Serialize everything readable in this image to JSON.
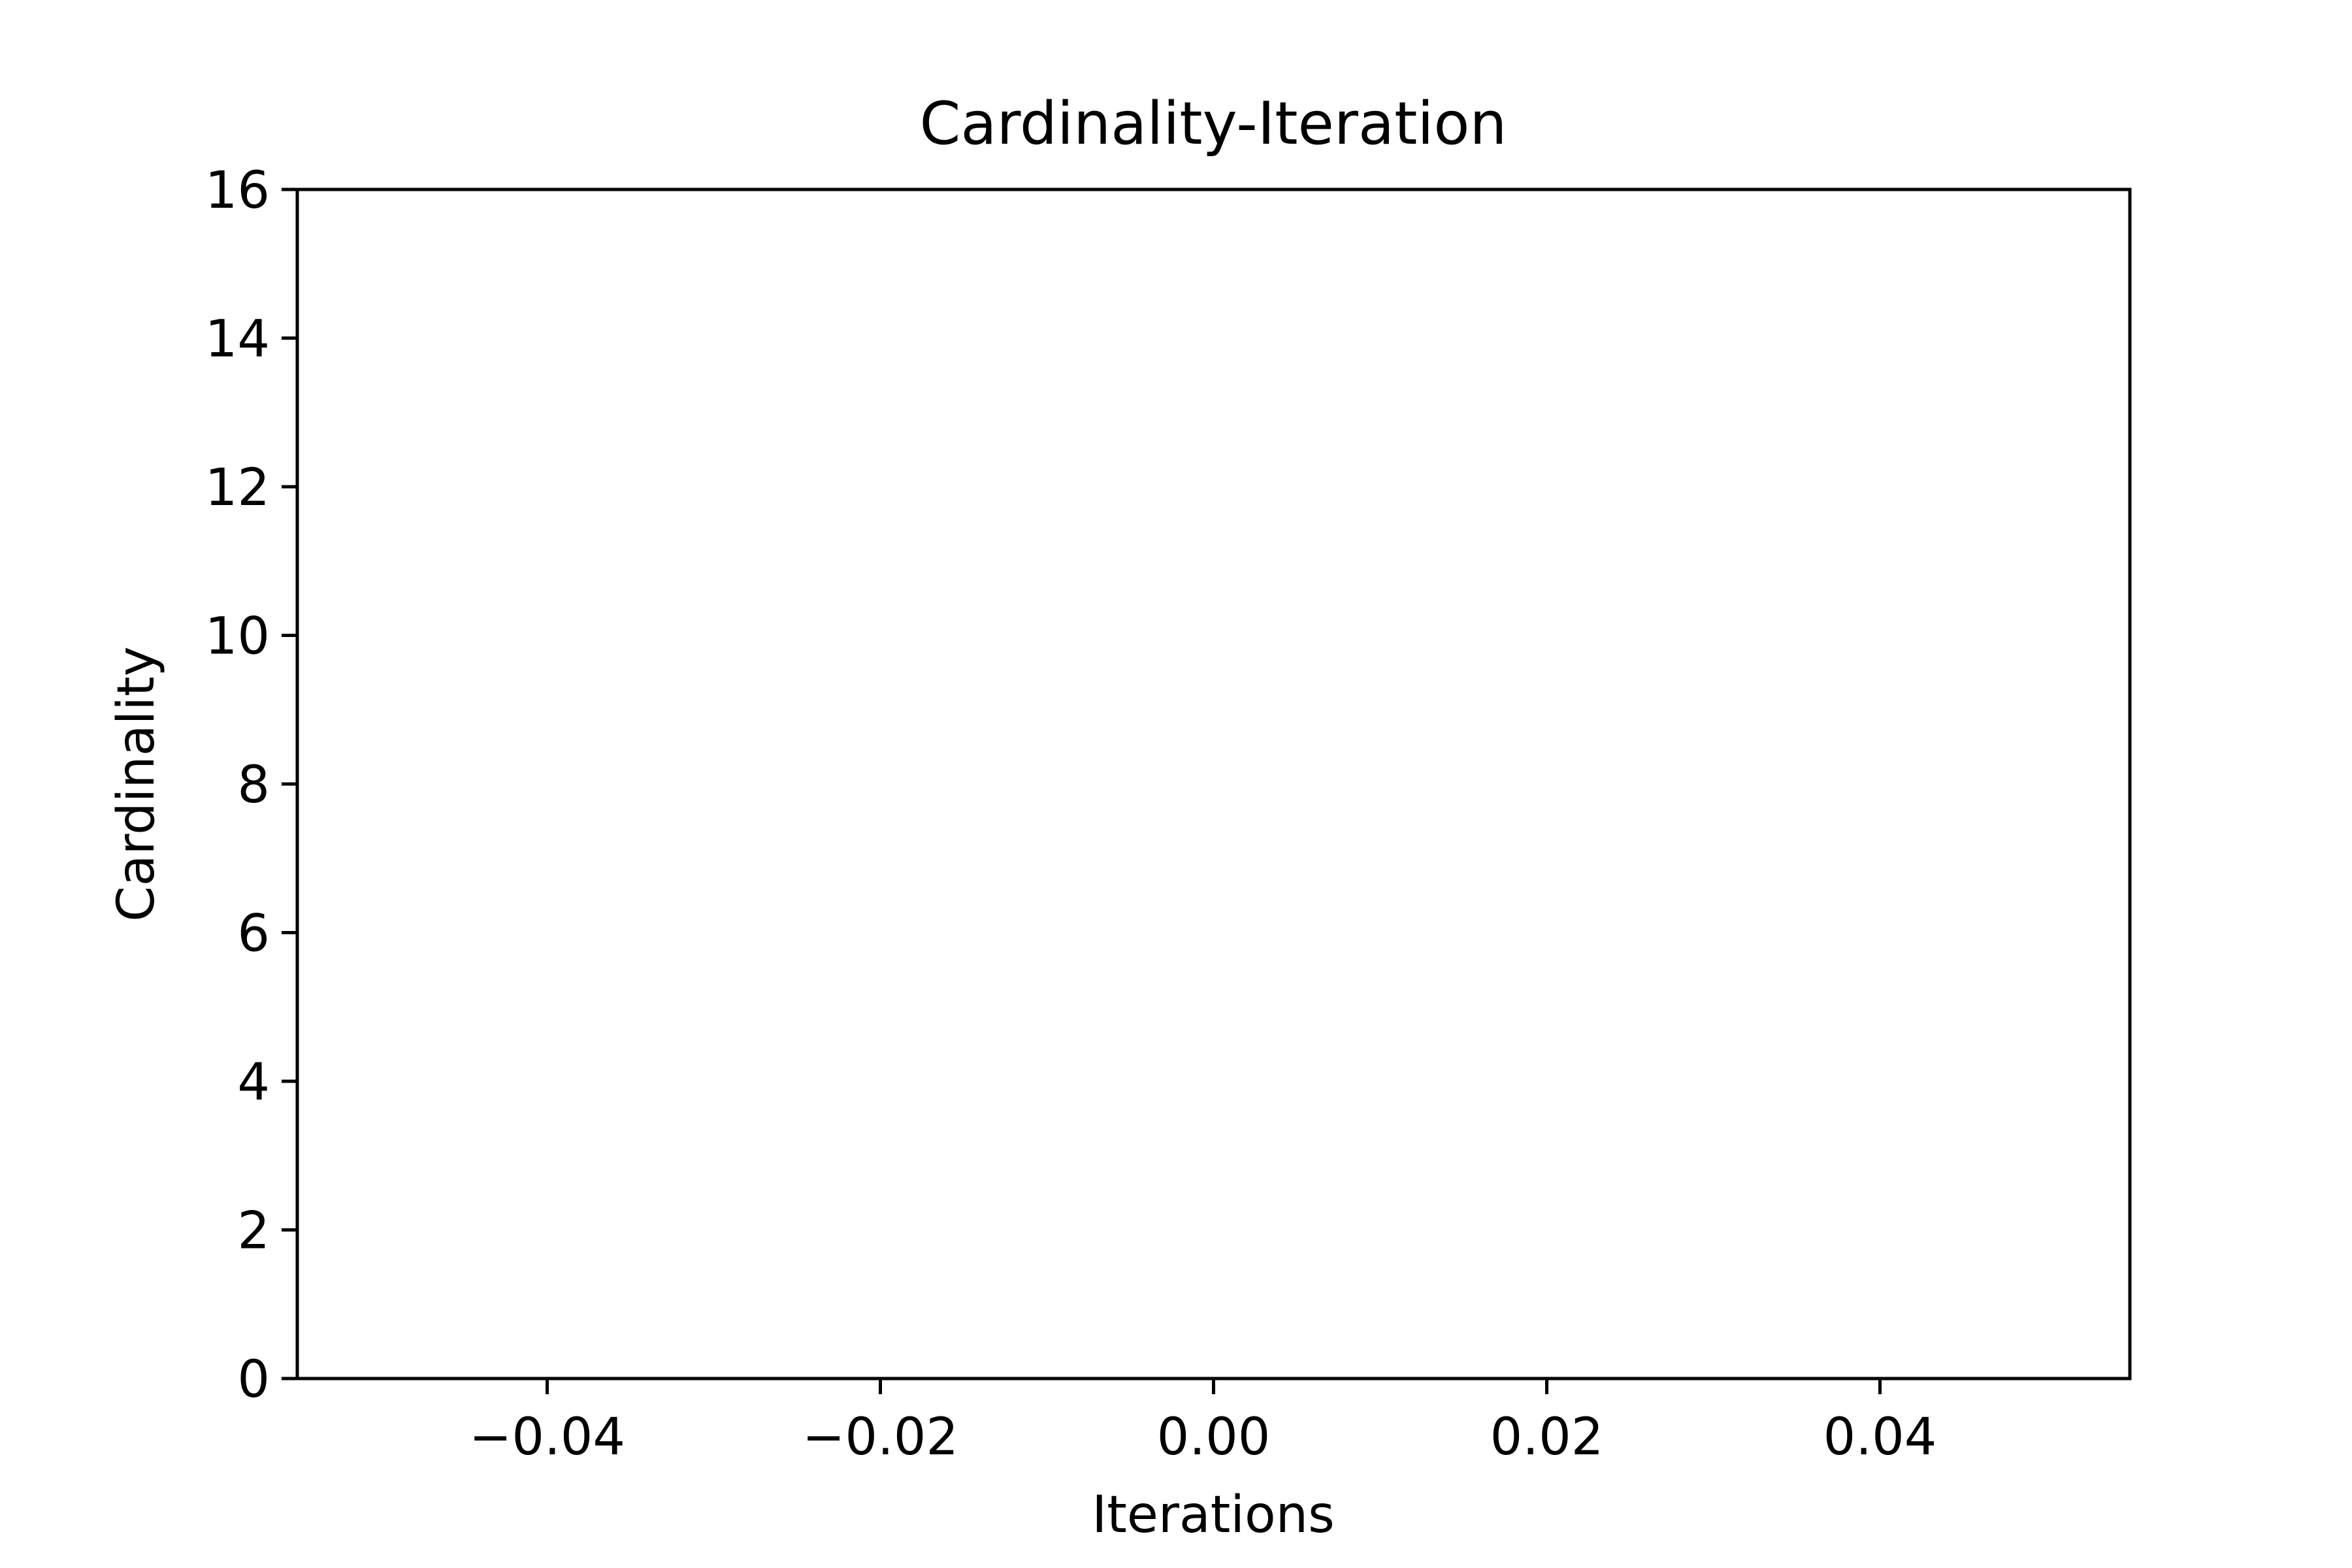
{
  "chart_data": {
    "type": "line",
    "title": "Cardinality-Iteration",
    "xlabel": "Iterations",
    "ylabel": "Cardinality",
    "xlim": [
      -0.055,
      0.055
    ],
    "ylim": [
      0,
      16
    ],
    "x_ticks": [
      -0.04,
      -0.02,
      0.0,
      0.02,
      0.04
    ],
    "x_tick_labels": [
      "−0.04",
      "−0.02",
      "0.00",
      "0.02",
      "0.04"
    ],
    "y_ticks": [
      0,
      2,
      4,
      6,
      8,
      10,
      12,
      14,
      16
    ],
    "y_tick_labels": [
      "0",
      "2",
      "4",
      "6",
      "8",
      "10",
      "12",
      "14",
      "16"
    ],
    "series": [],
    "grid": false,
    "colors": {
      "axes": "#000000",
      "background": "#ffffff"
    }
  }
}
